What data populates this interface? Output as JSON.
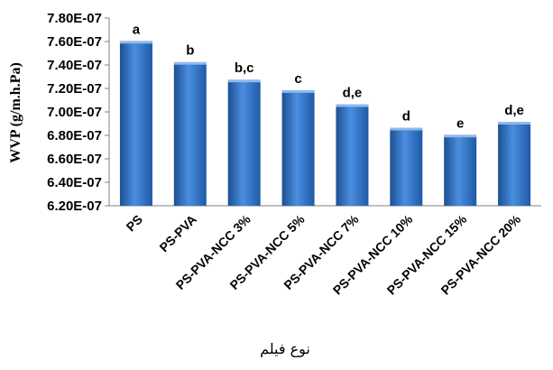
{
  "chart_data": {
    "type": "bar",
    "title": "",
    "ylabel": "WVP (g/m.h.Pa)",
    "xlabel": "نوع فیلم",
    "ylim": [
      6.2e-07,
      7.8e-07
    ],
    "yticks": [
      6.2e-07,
      6.4e-07,
      6.6e-07,
      6.8e-07,
      7e-07,
      7.2e-07,
      7.4e-07,
      7.6e-07,
      7.8e-07
    ],
    "ytick_labels": [
      "6.20E-07",
      "6.40E-07",
      "6.60E-07",
      "6.80E-07",
      "7.00E-07",
      "7.20E-07",
      "7.40E-07",
      "7.60E-07",
      "7.80E-07"
    ],
    "categories": [
      "PS",
      "PS-PVA",
      "PS-PVA-NCC 3%",
      "PS-PVA-NCC 5%",
      "PS-PVA-NCC 7%",
      "PS-PVA-NCC 10%",
      "PS-PVA-NCC 15%",
      "PS-PVA-NCC 20%"
    ],
    "values": [
      7.59e-07,
      7.41e-07,
      7.26e-07,
      7.17e-07,
      7.05e-07,
      6.85e-07,
      6.79e-07,
      6.9e-07
    ],
    "significance_letters": [
      "a",
      "b",
      "b,c",
      "c",
      "d,e",
      "d",
      "e",
      "d,e"
    ],
    "grid": false,
    "legend": "none",
    "bar_color": "#2f6fc0"
  }
}
